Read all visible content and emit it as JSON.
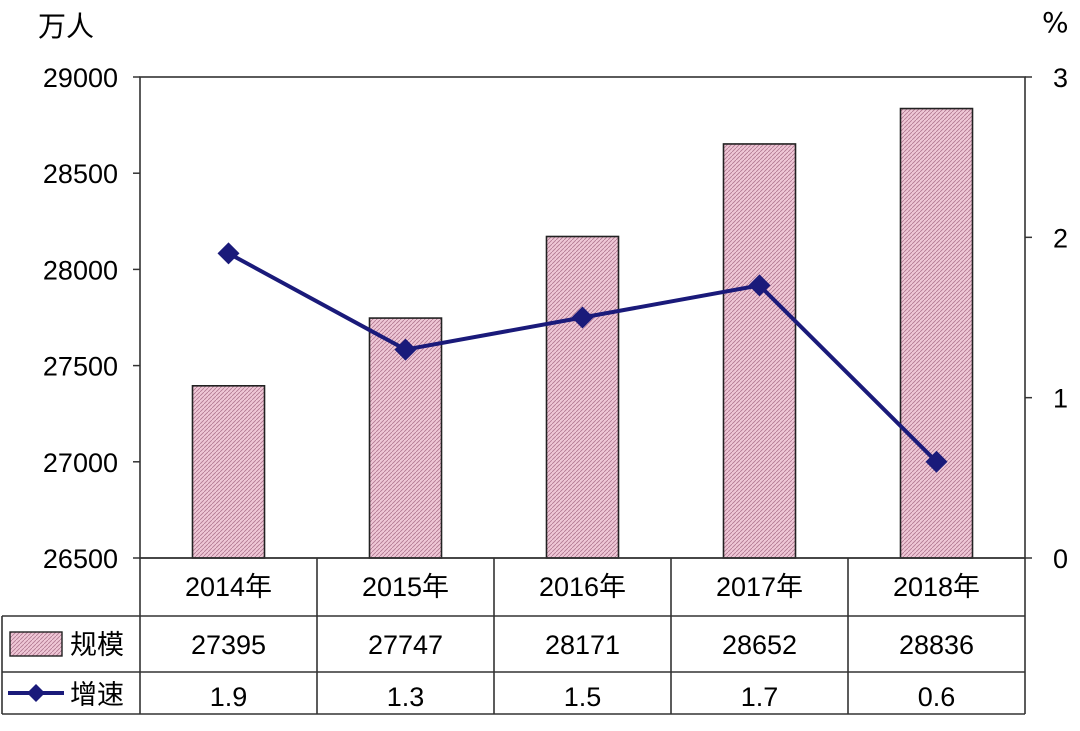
{
  "chart_data": {
    "type": "bar+line",
    "categories": [
      "2014年",
      "2015年",
      "2016年",
      "2017年",
      "2018年"
    ],
    "series": [
      {
        "name": "规模",
        "type": "bar",
        "axis": "left",
        "values": [
          27395,
          27747,
          28171,
          28652,
          28836
        ],
        "color": "#e6b2c7"
      },
      {
        "name": "增速",
        "type": "line",
        "axis": "right",
        "values": [
          1.9,
          1.3,
          1.5,
          1.7,
          0.6
        ],
        "color": "#1a1a7a"
      }
    ],
    "left_axis": {
      "unit": "万人",
      "ylim": [
        26500,
        29000
      ],
      "ticks": [
        "26500",
        "27000",
        "27500",
        "28000",
        "28500",
        "29000"
      ]
    },
    "right_axis": {
      "unit": "%",
      "ylim": [
        0,
        3
      ],
      "ticks": [
        "0",
        "1",
        "2",
        "3"
      ]
    },
    "table_values": {
      "规模": [
        "27395",
        "27747",
        "28171",
        "28652",
        "28836"
      ],
      "增速": [
        "1.9",
        "1.3",
        "1.5",
        "1.7",
        "0.6"
      ]
    },
    "grid": false,
    "legend": "data-table"
  }
}
